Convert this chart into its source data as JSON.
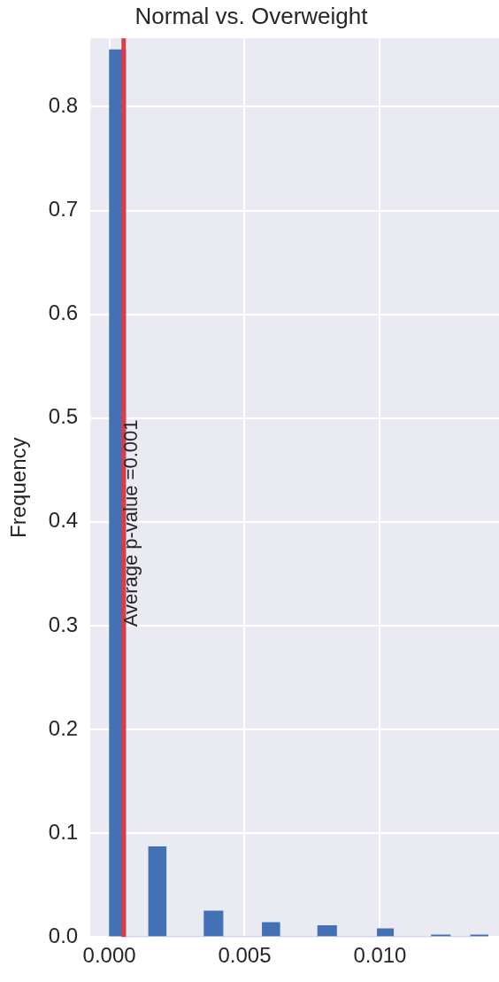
{
  "chart_data": {
    "type": "histogram",
    "title": "Normal vs. Overweight",
    "ylabel": "Frequency",
    "bins": [
      0,
      0.0006,
      0.00145,
      0.0021,
      0.0035,
      0.0042,
      0.00565,
      0.0063,
      0.0077,
      0.0084,
      0.0099,
      0.0105,
      0.0119,
      0.0126,
      0.01335,
      0.014
    ],
    "values": [
      0.855,
      0,
      0.087,
      0,
      0.025,
      0,
      0.014,
      0,
      0.011,
      0,
      0.008,
      0,
      0.002,
      0,
      0.002
    ],
    "color": "#4470b6",
    "xlim": [
      -0.0007,
      0.0144
    ],
    "xticks": [
      {
        "value": 0,
        "label": "0.000"
      },
      {
        "value": 0.005,
        "label": "0.005"
      },
      {
        "value": 0.01,
        "label": "0.010"
      }
    ],
    "ylim": [
      0,
      0.866
    ],
    "yticks": [
      {
        "value": 0,
        "label": "0.0"
      },
      0.1,
      0.2,
      0.3,
      0.4,
      0.5,
      0.6,
      0.7,
      0.8
    ],
    "ref_lines": [
      {
        "axis": "x",
        "value": 0.00053,
        "label": "Average p-value =0.001",
        "color": "#dc3b47"
      }
    ],
    "grid": true,
    "legend": false
  }
}
